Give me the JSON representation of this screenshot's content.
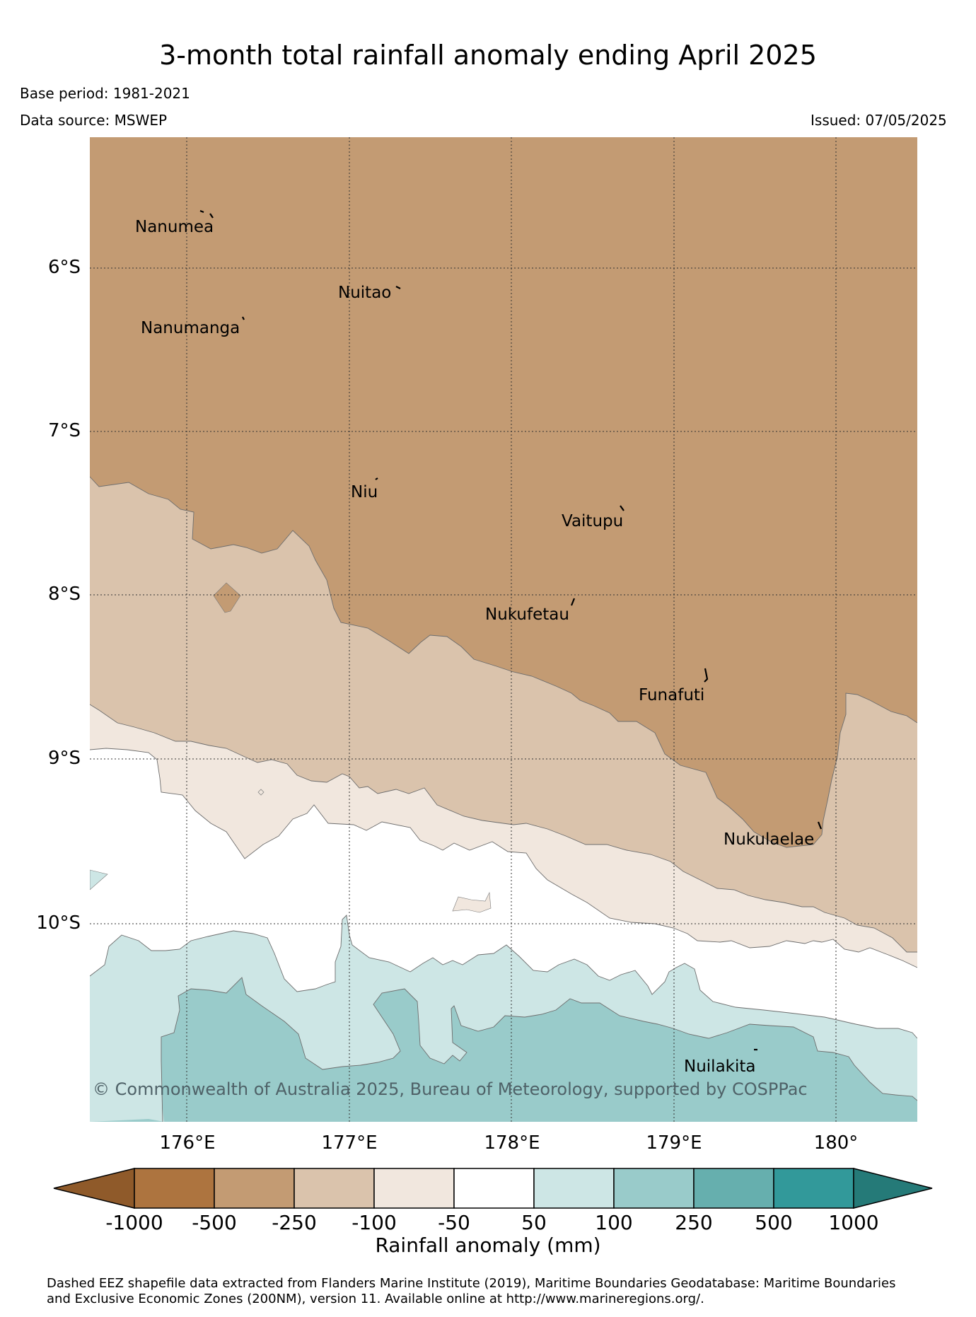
{
  "title": "3-month total rainfall anomaly ending April 2025",
  "base_period": "Base period: 1981-2021",
  "data_source": "Data source: MSWEP",
  "issued": "Issued: 07/05/2025",
  "latitude_labels": [
    "6°S",
    "7°S",
    "8°S",
    "9°S",
    "10°S"
  ],
  "longitude_labels": [
    "176°E",
    "177°E",
    "178°E",
    "179°E",
    "180°"
  ],
  "places": {
    "nanumea": "Nanumea",
    "nuitao": "Nuitao",
    "nanumanga": "Nanumanga",
    "niu": "Niu",
    "vaitupu": "Vaitupu",
    "nukufetau": "Nukufetau",
    "funafuti": "Funafuti",
    "nukulaelae": "Nukulaelae",
    "nuilakita": "Nuilakita"
  },
  "copyright": "© Commonwealth of Australia 2025, Bureau of Meteorology, supported by COSPPac",
  "colorbar": {
    "ticks": [
      "-1000",
      "-500",
      "-250",
      "-100",
      "-50",
      "50",
      "100",
      "250",
      "500",
      "1000"
    ],
    "label": "Rainfall anomaly (mm)",
    "colors": {
      "below_min": "#8f5a2a",
      "-1000_-500": "#ad743f",
      "-500_-250": "#c39b73",
      "-250_-100": "#dac3ac",
      "-100_-50": "#f1e7de",
      "-50_50": "#ffffff",
      "50_100": "#cde6e5",
      "100_250": "#99cbca",
      "250_500": "#66afae",
      "500_1000": "#32999a",
      "above_max": "#257a78"
    }
  },
  "footnote_line1": "Dashed EEZ shapefile data extracted from Flanders Marine Institute (2019), Maritime Boundaries Geodatabase: Maritime Boundaries",
  "footnote_line2": "and Exclusive Economic Zones (200NM), version 11. Available online at http://www.marineregions.org/."
}
